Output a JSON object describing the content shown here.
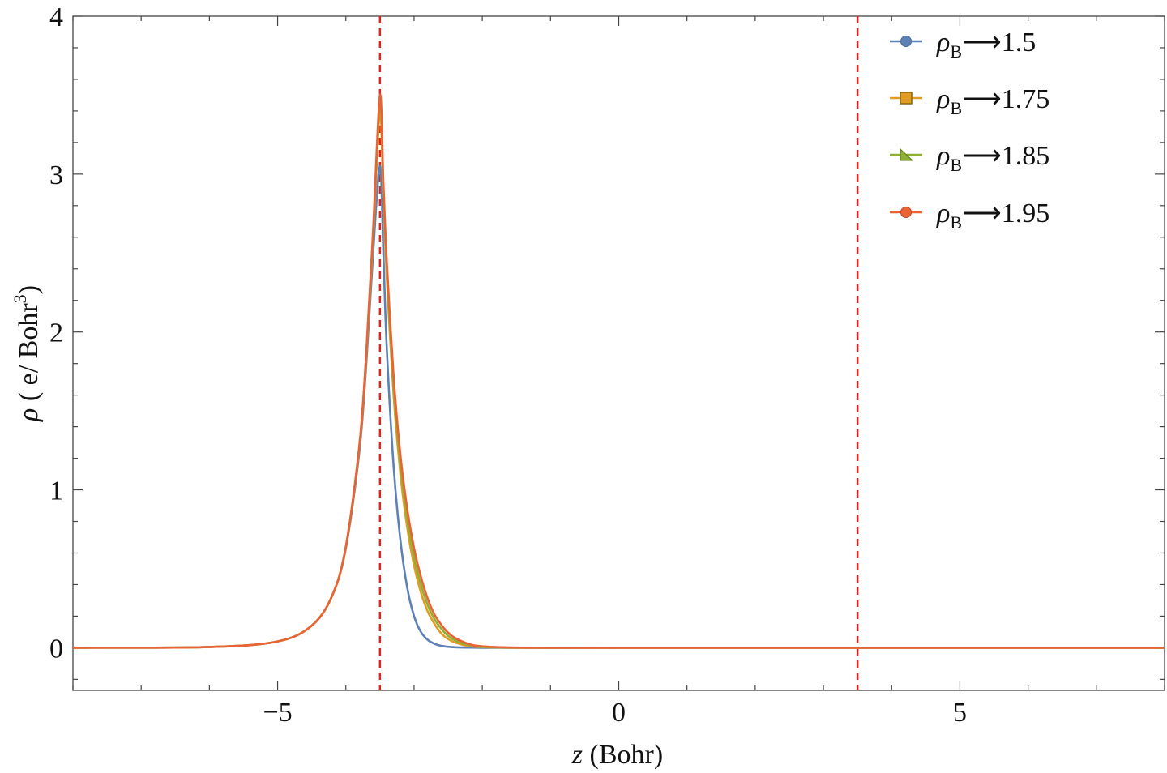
{
  "chart_data": {
    "type": "line",
    "title": "",
    "xlabel": {
      "var": "z",
      "unit": " (Bohr)"
    },
    "ylabel": {
      "var": "ρ",
      "unit_prefix": " ( e/ Bohr",
      "unit_sup": "3",
      "unit_suffix": ")"
    },
    "xlim": [
      -8.0,
      8.0
    ],
    "ylim": [
      -0.27,
      4.0
    ],
    "x_ticks": [
      {
        "value": -5,
        "label": "−5"
      },
      {
        "value": 0,
        "label": "0"
      },
      {
        "value": 5,
        "label": "5"
      }
    ],
    "y_ticks": [
      {
        "value": 0,
        "label": "0"
      },
      {
        "value": 1,
        "label": "1"
      },
      {
        "value": 2,
        "label": "2"
      },
      {
        "value": 3,
        "label": "3"
      },
      {
        "value": 4,
        "label": "4"
      }
    ],
    "x_minor_step": 1,
    "y_minor_step": 0.2,
    "grid": false,
    "legend_position": "top-right",
    "reference_lines": [
      {
        "x": -3.5,
        "color": "#e0231c",
        "style": "dashed"
      },
      {
        "x": 3.5,
        "color": "#e0231c",
        "style": "dashed"
      }
    ],
    "x": [
      -8.0,
      -6.0,
      -5.0,
      -4.5,
      -4.2,
      -4.0,
      -3.8,
      -3.7,
      -3.6,
      -3.5,
      -3.45,
      -3.4,
      -3.3,
      -3.2,
      -3.1,
      -3.0,
      -2.9,
      -2.8,
      -2.7,
      -2.6,
      -2.5,
      -2.4,
      -2.2,
      -2.0,
      -1.5,
      0.0,
      8.0
    ],
    "series": [
      {
        "label_base": "ρ",
        "label_sub": "B",
        "label_value": "⟶1.5",
        "color": "#5e81b5",
        "marker": "circle",
        "values": [
          0.0,
          0.005,
          0.04,
          0.14,
          0.33,
          0.63,
          1.25,
          1.8,
          2.5,
          3.05,
          2.5,
          1.9,
          1.15,
          0.68,
          0.38,
          0.2,
          0.1,
          0.05,
          0.025,
          0.012,
          0.006,
          0.003,
          0.001,
          0.0,
          0.0,
          0.0,
          0.0
        ]
      },
      {
        "label_base": "ρ",
        "label_sub": "B",
        "label_value": "⟶1.75",
        "color": "#e19c24",
        "marker": "square",
        "values": [
          0.0,
          0.005,
          0.04,
          0.14,
          0.33,
          0.64,
          1.28,
          1.85,
          2.6,
          3.4,
          2.85,
          2.35,
          1.6,
          1.1,
          0.76,
          0.52,
          0.35,
          0.23,
          0.15,
          0.09,
          0.055,
          0.033,
          0.011,
          0.004,
          0.0,
          0.0,
          0.0
        ]
      },
      {
        "label_base": "ρ",
        "label_sub": "B",
        "label_value": "⟶1.85",
        "color": "#8fb032",
        "marker": "triangle",
        "values": [
          0.0,
          0.005,
          0.04,
          0.14,
          0.33,
          0.64,
          1.28,
          1.86,
          2.62,
          3.45,
          2.9,
          2.4,
          1.66,
          1.16,
          0.82,
          0.57,
          0.4,
          0.27,
          0.18,
          0.12,
          0.075,
          0.047,
          0.017,
          0.006,
          0.0,
          0.0,
          0.0
        ]
      },
      {
        "label_base": "ρ",
        "label_sub": "B",
        "label_value": "⟶1.95",
        "color": "#eb6235",
        "marker": "circle",
        "values": [
          0.0,
          0.005,
          0.04,
          0.14,
          0.33,
          0.64,
          1.29,
          1.87,
          2.65,
          3.5,
          2.95,
          2.45,
          1.72,
          1.22,
          0.88,
          0.63,
          0.45,
          0.31,
          0.21,
          0.145,
          0.095,
          0.062,
          0.024,
          0.009,
          0.001,
          0.0,
          0.0
        ]
      }
    ]
  }
}
